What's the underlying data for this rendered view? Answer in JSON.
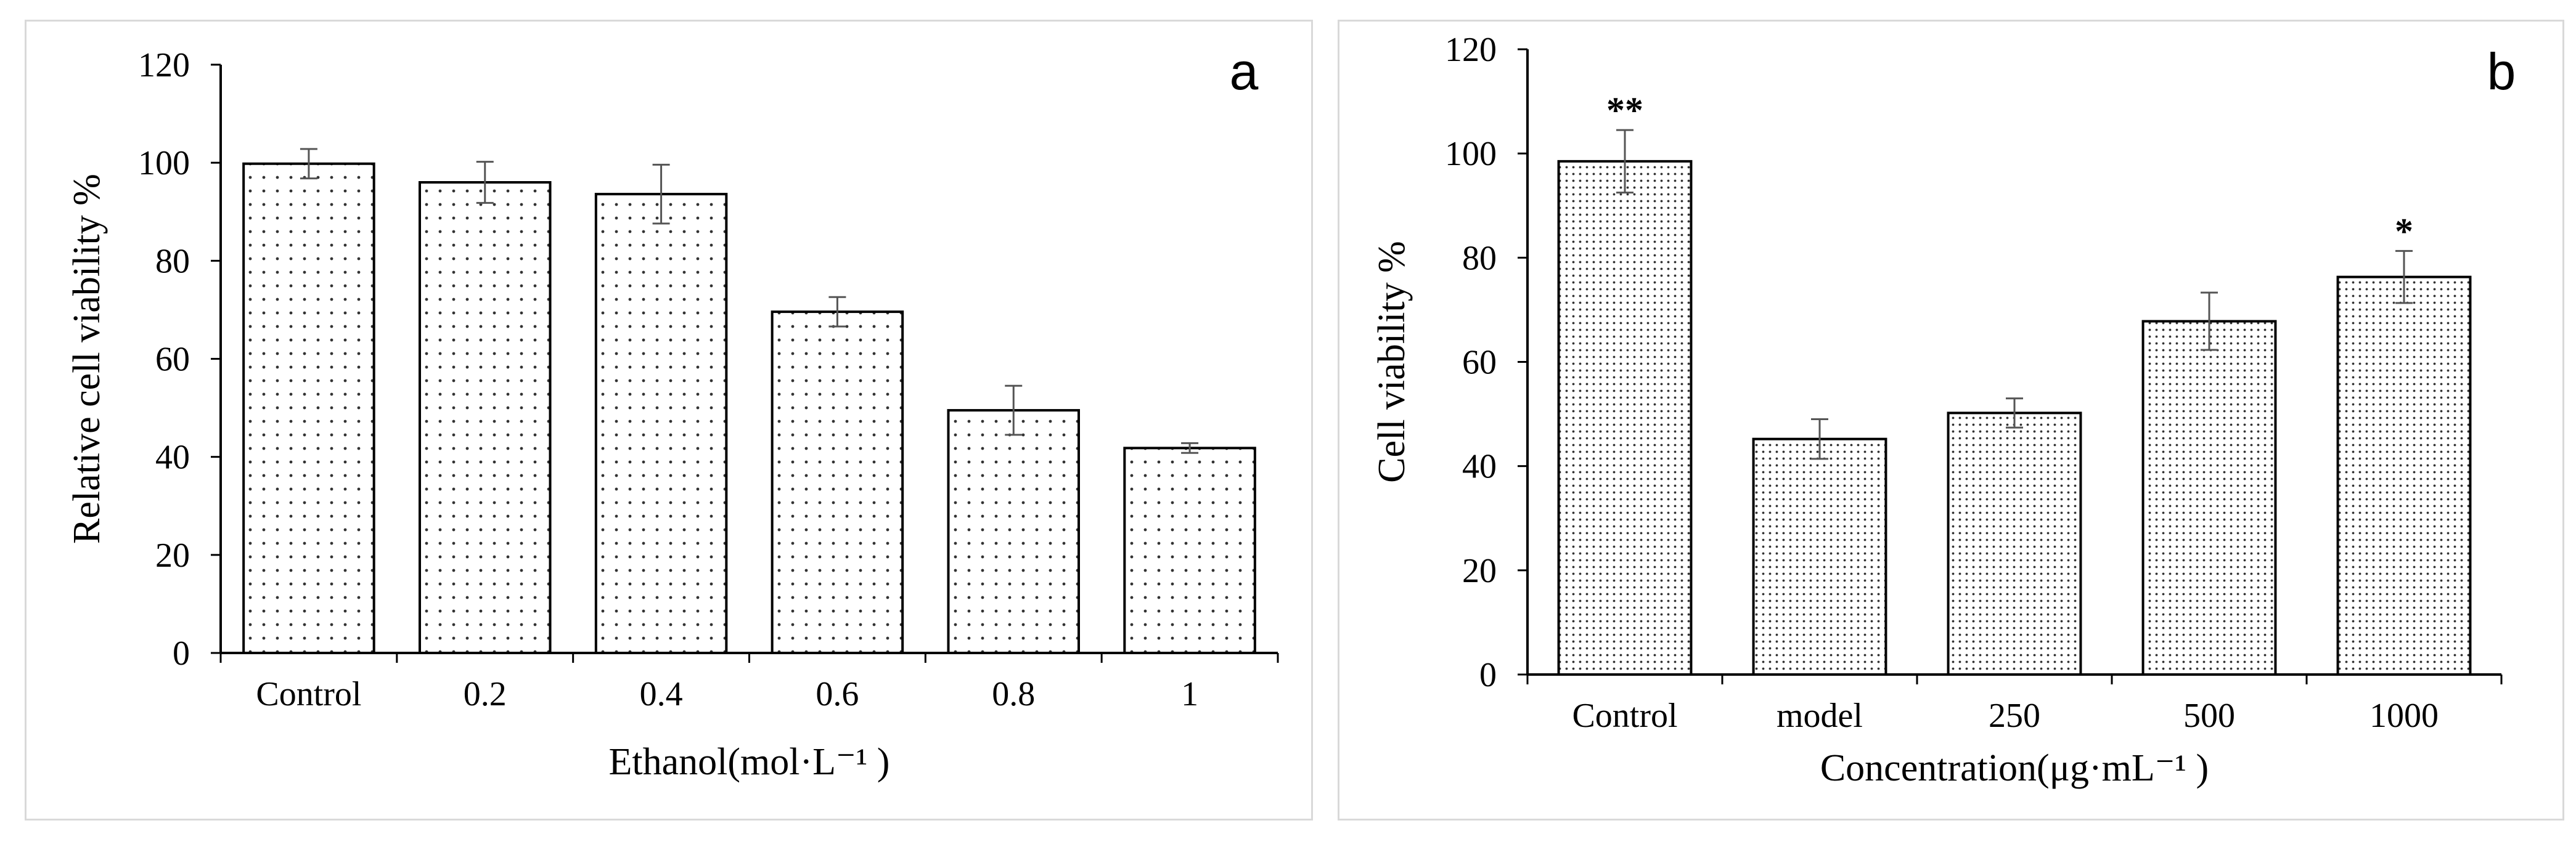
{
  "chart_data": [
    {
      "type": "bar",
      "panel_label": "a",
      "title": "",
      "categories": [
        "Control",
        "0.2",
        "0.4",
        "0.6",
        "0.8",
        "1"
      ],
      "values": [
        99.8,
        96.0,
        93.6,
        69.6,
        49.5,
        41.8
      ],
      "errors": [
        3.0,
        4.2,
        6.0,
        3.0,
        5.0,
        1.0
      ],
      "annotations": [
        "",
        "",
        "",
        "",
        "",
        ""
      ],
      "xlabel": "Ethanol(mol·L⁻¹ )",
      "ylabel": "Relative cell viability %",
      "ylim": [
        0,
        120
      ],
      "yticks": [
        0,
        20,
        40,
        60,
        80,
        100,
        120
      ],
      "ytick_labels": [
        "0",
        "20",
        "40",
        "60",
        "80",
        "100",
        "120"
      ],
      "grid": false,
      "bar_pattern": "sparse-dots"
    },
    {
      "type": "bar",
      "panel_label": "b",
      "title": "",
      "categories": [
        "Control",
        "model",
        "250",
        "500",
        "1000"
      ],
      "values": [
        98.5,
        45.2,
        50.2,
        67.8,
        76.3
      ],
      "errors": [
        6.0,
        3.8,
        2.8,
        5.5,
        5.0
      ],
      "annotations": [
        "**",
        "",
        "",
        "",
        "*"
      ],
      "xlabel": "Concentration(μg·mL⁻¹ )",
      "ylabel": "Cell viability %",
      "ylim": [
        0,
        120
      ],
      "yticks": [
        0,
        20,
        40,
        60,
        80,
        100,
        120
      ],
      "ytick_labels": [
        "0",
        "20",
        "40",
        "60",
        "80",
        "100",
        "120"
      ],
      "grid": false,
      "bar_pattern": "dense-dots"
    }
  ]
}
